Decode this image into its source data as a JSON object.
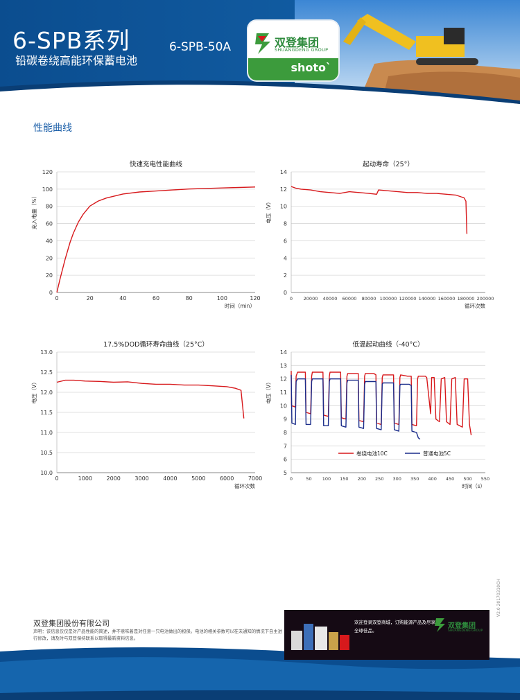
{
  "header": {
    "series_title": "6-SPB系列",
    "subtitle": "铅碳卷绕高能环保蓄电池",
    "model": "6-SPB-50A",
    "logo": {
      "name": "双登集团",
      "english": "SHUANGDENG GROUP",
      "tagline": "shoto`"
    }
  },
  "section_title": "性能曲线",
  "charts": [
    {
      "type": "line",
      "title": "快速充电性能曲线",
      "xlabel": "时间（min）",
      "ylabel": "充入电量（%）",
      "xlim": [
        0,
        120
      ],
      "ylim": [
        0,
        120
      ],
      "x_ticks": [
        "0",
        "20",
        "40",
        "60",
        "80",
        "100",
        "120"
      ],
      "y_ticks": [
        "0",
        "20",
        "20",
        "40",
        "60",
        "80",
        "100",
        "120"
      ],
      "series": [
        {
          "color": "#d7191c",
          "x": [
            0,
            2,
            5,
            8,
            10,
            13,
            16,
            20,
            25,
            30,
            35,
            40,
            50,
            60,
            70,
            80,
            90,
            100,
            110,
            120
          ],
          "y": [
            0,
            14,
            33,
            50,
            59,
            70,
            78,
            86,
            91,
            94,
            96,
            98,
            100,
            101,
            102,
            103,
            103.5,
            104,
            104.5,
            105
          ]
        }
      ]
    },
    {
      "type": "line",
      "title": "起动寿命（25°）",
      "xlabel": "循环次数",
      "ylabel": "电压（V）",
      "xlim": [
        0,
        200000
      ],
      "ylim": [
        0,
        14
      ],
      "x_ticks": [
        "0",
        "20000",
        "40000",
        "60000",
        "80000",
        "100000",
        "120000",
        "140000",
        "160000",
        "180000",
        "200000"
      ],
      "y_ticks": [
        "0",
        "2",
        "4",
        "6",
        "8",
        "10",
        "12",
        "14"
      ],
      "series": [
        {
          "color": "#d7191c",
          "x": [
            0,
            5000,
            10000,
            20000,
            30000,
            40000,
            50000,
            60000,
            70000,
            80000,
            88000,
            90000,
            100000,
            110000,
            120000,
            130000,
            140000,
            150000,
            160000,
            170000,
            175000,
            178000,
            180000,
            181000
          ],
          "y": [
            12.3,
            12.1,
            12.0,
            11.9,
            11.7,
            11.6,
            11.5,
            11.7,
            11.6,
            11.5,
            11.4,
            11.9,
            11.8,
            11.7,
            11.6,
            11.6,
            11.5,
            11.5,
            11.4,
            11.3,
            11.1,
            11.0,
            10.6,
            6.8
          ]
        }
      ]
    },
    {
      "type": "line",
      "title": "17.5%DOD循环寿命曲线（25°C）",
      "xlabel": "循环次数",
      "ylabel": "电压（V）",
      "xlim": [
        0,
        7000
      ],
      "ylim": [
        10.0,
        13.0
      ],
      "x_ticks": [
        "0",
        "1000",
        "2000",
        "3000",
        "4000",
        "5000",
        "6000",
        "7000"
      ],
      "y_ticks": [
        "10.0",
        "10.5",
        "11.0",
        "11.5",
        "12.0",
        "12.5",
        "13.0"
      ],
      "series": [
        {
          "color": "#d7191c",
          "x": [
            0,
            300,
            600,
            1000,
            1500,
            2000,
            2500,
            3000,
            3500,
            4000,
            4500,
            5000,
            5500,
            6000,
            6300,
            6500,
            6600
          ],
          "y": [
            12.25,
            12.3,
            12.3,
            12.28,
            12.27,
            12.25,
            12.26,
            12.22,
            12.2,
            12.2,
            12.18,
            12.18,
            12.16,
            12.14,
            12.1,
            12.05,
            11.35
          ]
        }
      ]
    },
    {
      "type": "line",
      "title": "低温起动曲线（-40°C）",
      "xlabel": "时间（s）",
      "ylabel": "电压（V）",
      "xlim": [
        0,
        550
      ],
      "ylim": [
        5,
        14
      ],
      "x_ticks": [
        "0",
        "50",
        "100",
        "150",
        "200",
        "250",
        "300",
        "350",
        "400",
        "450",
        "500",
        "550"
      ],
      "y_ticks": [
        "5",
        "6",
        "7",
        "8",
        "9",
        "10",
        "11",
        "12",
        "13",
        "14"
      ],
      "legend": [
        "卷绕电池10C",
        "普通电池5C"
      ],
      "series": [
        {
          "name": "卷绕电池10C",
          "color": "#d7191c",
          "x": [
            0,
            1,
            12,
            14,
            18,
            30,
            34,
            40,
            42,
            55,
            58,
            60,
            80,
            84,
            90,
            92,
            105,
            108,
            110,
            130,
            134,
            140,
            142,
            155,
            158,
            160,
            180,
            184,
            190,
            192,
            205,
            208,
            210,
            230,
            234,
            240,
            242,
            255,
            258,
            260,
            280,
            284,
            290,
            292,
            305,
            308,
            310,
            330,
            334,
            340,
            342,
            355,
            358,
            360,
            380,
            384,
            395,
            398,
            405,
            410,
            420,
            425,
            435,
            440,
            450,
            455,
            465,
            470,
            485,
            490,
            500,
            505,
            510
          ],
          "y": [
            12.6,
            10.0,
            9.9,
            12.2,
            12.5,
            12.5,
            12.5,
            12.5,
            9.5,
            9.4,
            12.2,
            12.5,
            12.5,
            12.5,
            12.5,
            9.3,
            9.2,
            12.2,
            12.5,
            12.5,
            12.5,
            12.5,
            9.1,
            9.0,
            12.2,
            12.4,
            12.4,
            12.4,
            12.4,
            8.9,
            8.8,
            12.2,
            12.4,
            12.4,
            12.4,
            12.3,
            8.7,
            8.6,
            12.1,
            12.3,
            12.3,
            12.3,
            12.3,
            8.7,
            8.6,
            12.1,
            12.3,
            12.2,
            12.2,
            12.2,
            8.6,
            8.5,
            12.0,
            12.2,
            12.2,
            12.1,
            9.4,
            12.1,
            12.1,
            9.0,
            8.8,
            12.0,
            12.1,
            8.8,
            8.6,
            12.0,
            12.1,
            8.6,
            8.4,
            12.0,
            12.0,
            8.6,
            7.8
          ]
        },
        {
          "name": "普通电池5C",
          "color": "#1a2c8a",
          "x": [
            0,
            2,
            12,
            14,
            18,
            30,
            34,
            40,
            42,
            55,
            58,
            60,
            80,
            84,
            90,
            92,
            105,
            108,
            110,
            130,
            134,
            140,
            142,
            155,
            158,
            160,
            180,
            184,
            190,
            192,
            205,
            208,
            210,
            230,
            234,
            240,
            242,
            255,
            258,
            260,
            280,
            284,
            290,
            292,
            305,
            308,
            310,
            330,
            334,
            340,
            342,
            355,
            360,
            365
          ],
          "y": [
            12.3,
            8.7,
            8.6,
            11.8,
            12.0,
            12.0,
            12.0,
            12.0,
            8.6,
            8.6,
            11.8,
            12.0,
            12.0,
            12.0,
            12.0,
            8.5,
            8.5,
            11.8,
            12.0,
            12.0,
            12.0,
            12.0,
            8.5,
            8.4,
            11.7,
            11.9,
            11.9,
            11.9,
            11.9,
            8.4,
            8.3,
            11.6,
            11.8,
            11.8,
            11.8,
            11.8,
            8.3,
            8.2,
            11.6,
            11.7,
            11.7,
            11.7,
            11.7,
            8.2,
            8.1,
            11.5,
            11.6,
            11.6,
            11.6,
            11.5,
            8.1,
            8.0,
            7.6,
            7.5
          ]
        }
      ]
    }
  ],
  "footer": {
    "company": "双登集团股份有限公司",
    "notice": "声明：该信息仅仅是对产品性能的简述，并不意味着是对任意一只电池做出的担保。电池的相关参数可以在未通知的情况下自主进行修改，请及时与双登保持联系以取得最新资料信息。",
    "banner_text": "欢迎登录双登商城，订购能源产品及尽享全球佳品。",
    "banner_brand": "双登集团",
    "banner_brand_en": "SHUANGDENG GROUP",
    "version": "V2.0 20170310CH"
  }
}
